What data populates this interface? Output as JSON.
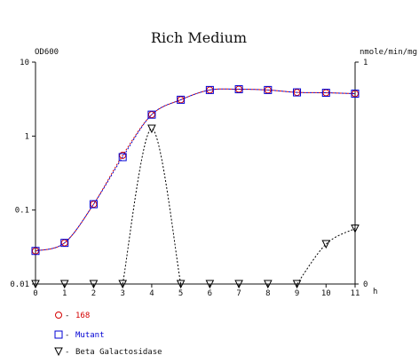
{
  "chart_data": {
    "type": "line",
    "title": "Rich Medium",
    "ylabel_left": "OD600",
    "ylabel_right": "nmole/min/mg",
    "xlabel": "h",
    "x": [
      0,
      1,
      2,
      3,
      4,
      5,
      6,
      7,
      8,
      9,
      10,
      11
    ],
    "x_ticks": [
      "0",
      "1",
      "2",
      "3",
      "4",
      "5",
      "6",
      "7",
      "8",
      "9",
      "10",
      "11"
    ],
    "y_left_ticks": [
      "10",
      "1",
      "0.1",
      "0.01"
    ],
    "y_right_ticks": [
      "1",
      "0"
    ],
    "left_scale": "log",
    "ylim_left": [
      0.01,
      10
    ],
    "ylim_right": [
      0,
      1
    ],
    "legend_position": "bottom-left",
    "series": [
      {
        "name": "168",
        "axis": "left",
        "marker": "circle",
        "color": "#d40000",
        "values": [
          0.028,
          0.036,
          0.12,
          0.55,
          1.95,
          3.1,
          4.2,
          4.3,
          4.2,
          3.9,
          3.85,
          3.75
        ]
      },
      {
        "name": "Mutant",
        "axis": "left",
        "marker": "square",
        "color": "#0000d4",
        "values": [
          0.028,
          0.036,
          0.12,
          0.52,
          1.95,
          3.1,
          4.2,
          4.3,
          4.2,
          3.9,
          3.85,
          3.75
        ]
      },
      {
        "name": "Beta Galactosidase",
        "axis": "right",
        "marker": "triangle-down",
        "color": "#000000",
        "values": [
          0,
          0,
          0,
          0,
          0.7,
          0,
          0,
          0,
          0,
          0,
          0.18,
          0.25
        ]
      }
    ]
  }
}
